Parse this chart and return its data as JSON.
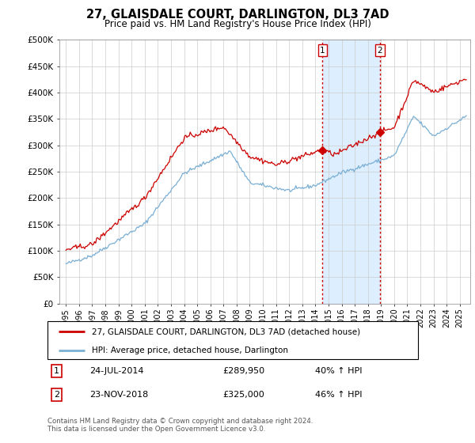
{
  "title": "27, GLAISDALE COURT, DARLINGTON, DL3 7AD",
  "subtitle": "Price paid vs. HM Land Registry's House Price Index (HPI)",
  "legend_property": "27, GLAISDALE COURT, DARLINGTON, DL3 7AD (detached house)",
  "legend_hpi": "HPI: Average price, detached house, Darlington",
  "sale1_label": "1",
  "sale1_date": "24-JUL-2014",
  "sale1_price": 289950,
  "sale1_price_str": "£289,950",
  "sale1_hpi_text": "40% ↑ HPI",
  "sale2_label": "2",
  "sale2_date": "23-NOV-2018",
  "sale2_price": 325000,
  "sale2_price_str": "£325,000",
  "sale2_hpi_text": "46% ↑ HPI",
  "footer": "Contains HM Land Registry data © Crown copyright and database right 2024.\nThis data is licensed under the Open Government Licence v3.0.",
  "property_color": "#cc0000",
  "hpi_color": "#7aafd4",
  "shade_color": "#ddeeff",
  "marker_color": "#cc0000",
  "vline_color": "#cc0000",
  "ylim": [
    0,
    500000
  ],
  "yticks": [
    0,
    50000,
    100000,
    150000,
    200000,
    250000,
    300000,
    350000,
    400000,
    450000,
    500000
  ],
  "ytick_labels": [
    "£0",
    "£50K",
    "£100K",
    "£150K",
    "£200K",
    "£250K",
    "£300K",
    "£350K",
    "£400K",
    "£450K",
    "£500K"
  ],
  "sale1_x": 2014.55,
  "sale2_x": 2018.9,
  "xlim_left": 1994.5,
  "xlim_right": 2025.8
}
